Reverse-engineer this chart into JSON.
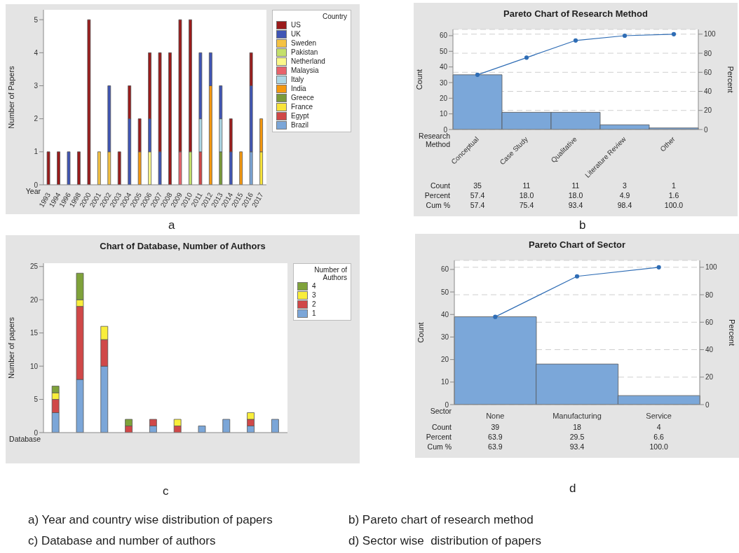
{
  "chart_data": [
    {
      "type": "bar",
      "stacked": true,
      "categories": [
        "1993",
        "1994",
        "1996",
        "1998",
        "2000",
        "2001",
        "2002",
        "2003",
        "2004",
        "2005",
        "2006",
        "2007",
        "2008",
        "2009",
        "2010",
        "2011",
        "2012",
        "2013",
        "2014",
        "2015",
        "2016",
        "2017"
      ],
      "xlabel": "Year",
      "ylabel": "Number of Papers",
      "ylim": [
        0,
        5.3
      ],
      "yticks": [
        0,
        1,
        2,
        3,
        4,
        5
      ],
      "legend": "right",
      "legend_title": "Country",
      "annotations": [
        "a",
        "a) Year and country wise distribution of papers"
      ],
      "series": [
        {
          "name": "Brazil",
          "color": "#7ba6d8",
          "values": [
            null,
            null,
            null,
            null,
            null,
            null,
            null,
            null,
            null,
            null,
            null,
            null,
            null,
            null,
            null,
            null,
            null,
            null,
            null,
            null,
            1,
            null
          ]
        },
        {
          "name": "Egypt",
          "color": "#d04848",
          "values": [
            null,
            null,
            null,
            null,
            null,
            null,
            null,
            null,
            null,
            null,
            null,
            null,
            null,
            null,
            null,
            1,
            null,
            null,
            null,
            null,
            null,
            null
          ]
        },
        {
          "name": "France",
          "color": "#f9e43b",
          "values": [
            null,
            null,
            null,
            null,
            null,
            null,
            null,
            null,
            null,
            null,
            null,
            null,
            null,
            null,
            null,
            null,
            null,
            null,
            null,
            null,
            null,
            1
          ]
        },
        {
          "name": "Greece",
          "color": "#7a9a3a",
          "values": [
            null,
            null,
            null,
            null,
            null,
            null,
            null,
            null,
            null,
            null,
            null,
            null,
            null,
            null,
            null,
            null,
            null,
            1,
            null,
            null,
            null,
            null
          ]
        },
        {
          "name": "India",
          "color": "#f5980f",
          "values": [
            null,
            null,
            null,
            null,
            null,
            null,
            null,
            null,
            null,
            1,
            null,
            null,
            null,
            null,
            null,
            null,
            3,
            null,
            null,
            1,
            null,
            1
          ]
        },
        {
          "name": "Italy",
          "color": "#add8e6",
          "values": [
            null,
            null,
            null,
            null,
            null,
            null,
            null,
            null,
            null,
            null,
            null,
            null,
            null,
            null,
            null,
            1,
            null,
            1,
            null,
            null,
            null,
            null
          ]
        },
        {
          "name": "Malaysia",
          "color": "#e8636b",
          "values": [
            null,
            null,
            null,
            null,
            null,
            null,
            null,
            null,
            null,
            null,
            null,
            null,
            null,
            1,
            null,
            null,
            null,
            null,
            null,
            null,
            null,
            null
          ]
        },
        {
          "name": "Netherland",
          "color": "#fbf88a",
          "values": [
            null,
            null,
            null,
            null,
            null,
            null,
            null,
            null,
            null,
            null,
            1,
            null,
            null,
            null,
            null,
            null,
            null,
            null,
            null,
            null,
            null,
            null
          ]
        },
        {
          "name": "Pakistan",
          "color": "#c4e06b",
          "values": [
            null,
            null,
            null,
            null,
            null,
            null,
            null,
            null,
            null,
            null,
            null,
            null,
            null,
            null,
            1,
            null,
            null,
            null,
            null,
            null,
            null,
            null
          ]
        },
        {
          "name": "Sweden",
          "color": "#f5c242",
          "values": [
            null,
            null,
            null,
            null,
            null,
            1,
            1,
            null,
            null,
            null,
            null,
            null,
            null,
            null,
            null,
            null,
            null,
            null,
            null,
            null,
            null,
            null
          ]
        },
        {
          "name": "UK",
          "color": "#3f55b5",
          "values": [
            null,
            null,
            1,
            null,
            null,
            null,
            2,
            null,
            2,
            null,
            1,
            1,
            null,
            null,
            null,
            2,
            1,
            1,
            1,
            null,
            2,
            null
          ]
        },
        {
          "name": "US",
          "color": "#9b1b1b",
          "values": [
            1,
            1,
            null,
            1,
            5,
            null,
            null,
            1,
            1,
            1,
            2,
            3,
            4,
            4,
            4,
            null,
            null,
            null,
            1,
            null,
            1,
            null
          ]
        }
      ]
    },
    {
      "type": "bar",
      "title": "Pareto Chart of Research Method",
      "categories": [
        "Conceptual",
        "Case Study",
        "Qualitative",
        "Literature Review",
        "Other"
      ],
      "xlabel": "Research Method",
      "ylabel": "Count",
      "y2label": "Percent",
      "ylim": [
        0,
        64
      ],
      "yticks": [
        0,
        10,
        20,
        30,
        40,
        50,
        60
      ],
      "y2lim": [
        0,
        105
      ],
      "y2ticks": [
        0,
        20,
        40,
        60,
        80,
        100
      ],
      "grid": true,
      "marker": "circle",
      "annotations": [
        "b",
        "b) Pareto chart of research method",
        "Count",
        "Percent",
        "Cum %",
        "57.4",
        "18.0",
        "18.0",
        "4.9",
        "1.6"
      ],
      "series": [
        {
          "color": "#7ba7d9",
          "values": [
            35,
            11,
            11,
            3,
            1
          ],
          "value_labels": [
            "35",
            "11",
            "11",
            "3",
            "1"
          ]
        },
        {
          "type": "line",
          "axis": "y2",
          "color": "#2f6db5",
          "values": [
            57.4,
            75.4,
            93.4,
            98.4,
            100
          ],
          "value_labels": [
            "57.4",
            "75.4",
            "93.4",
            "98.4",
            "100.0"
          ]
        }
      ]
    },
    {
      "type": "bar",
      "stacked": true,
      "title": "Chart of Database, Number of Authors",
      "categories": [
        null,
        null,
        null,
        null,
        null,
        null,
        null,
        null,
        null,
        null
      ],
      "xlabel": "Database",
      "ylabel": "Number of papers",
      "ylim": [
        0,
        25.5
      ],
      "yticks": [
        0,
        5,
        10,
        15,
        20,
        25
      ],
      "legend": "right",
      "legend_title": "Number of Authors",
      "annotations": [
        "c",
        "c) Database and number of authors"
      ],
      "series": [
        {
          "name": "1",
          "color": "#7ba6d8",
          "values": [
            3,
            8,
            10,
            null,
            1,
            null,
            1,
            2,
            1,
            2
          ]
        },
        {
          "name": "2",
          "color": "#d04848",
          "values": [
            2,
            11,
            4,
            1,
            1,
            1,
            null,
            null,
            1,
            null
          ]
        },
        {
          "name": "3",
          "color": "#f9ee3b",
          "values": [
            1,
            1,
            2,
            null,
            null,
            1,
            null,
            null,
            1,
            null
          ]
        },
        {
          "name": "4",
          "color": "#7fa23a",
          "values": [
            1,
            4,
            null,
            1,
            null,
            null,
            null,
            null,
            null,
            null
          ]
        }
      ]
    },
    {
      "type": "bar",
      "title": "Pareto Chart of Sector",
      "categories": [
        "None",
        "Manufacturing",
        "Service"
      ],
      "xlabel": "Sector",
      "ylabel": "Count",
      "y2label": "Percent",
      "ylim": [
        0,
        64
      ],
      "yticks": [
        0,
        10,
        20,
        30,
        40,
        50,
        60
      ],
      "y2lim": [
        0,
        105
      ],
      "y2ticks": [
        0,
        20,
        40,
        60,
        80,
        100
      ],
      "grid": true,
      "marker": "circle",
      "annotations": [
        "d",
        "d) Sector wise  distribution of papers",
        "Count",
        "Percent",
        "Cum %",
        "63.9",
        "29.5",
        "6.6"
      ],
      "series": [
        {
          "color": "#7ba7d9",
          "values": [
            39,
            18,
            4
          ],
          "value_labels": [
            "39",
            "18",
            "4"
          ]
        },
        {
          "type": "line",
          "axis": "y2",
          "color": "#2f6db5",
          "values": [
            63.9,
            93.4,
            100
          ],
          "value_labels": [
            "63.9",
            "93.4",
            "100.0"
          ]
        }
      ]
    }
  ]
}
